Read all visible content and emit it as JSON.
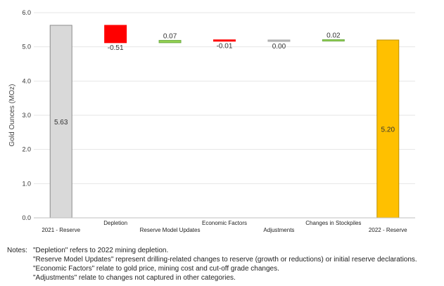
{
  "chart_data": {
    "type": "waterfall",
    "ylabel": "Gold Ounces (MOz)",
    "ylim": [
      0,
      6
    ],
    "yticks": [
      "0.0",
      "1.0",
      "2.0",
      "3.0",
      "4.0",
      "5.0",
      "6.0"
    ],
    "grid": true,
    "categories": [
      "2021 - Reserve",
      "Depletion",
      "Reserve Model Updates",
      "Economic Factors",
      "Adjustments",
      "Changes in Stockpiles",
      "2022 - Reserve"
    ],
    "values": [
      5.63,
      -0.51,
      0.07,
      -0.01,
      0.0,
      0.02,
      5.2
    ],
    "labels": [
      "5.63",
      "-0.51",
      "0.07",
      "-0.01",
      "0.00",
      "0.02",
      "5.20"
    ],
    "bar_kinds": [
      "total",
      "delta",
      "delta",
      "delta",
      "delta",
      "delta",
      "total"
    ],
    "colors": {
      "start_total": "#d9d9d9",
      "end_total": "#ffc000",
      "decrease": "#ff0000",
      "increase": "#92d050",
      "neutral": "#bfbfbf",
      "grid": "#e6e6e6",
      "axis": "#bfbfbf"
    }
  },
  "notes": {
    "heading": "Notes:",
    "lines": [
      "\"Depletion\" refers to 2022 mining depletion.",
      "\"Reserve Model Updates\" represent drilling-related changes to reserve (growth or reductions) or initial reserve declarations.",
      "\"Economic Factors\" relate to gold price, mining cost and cut-off grade changes.",
      "\"Adjustments\" relate to changes not captured in other categories."
    ]
  }
}
